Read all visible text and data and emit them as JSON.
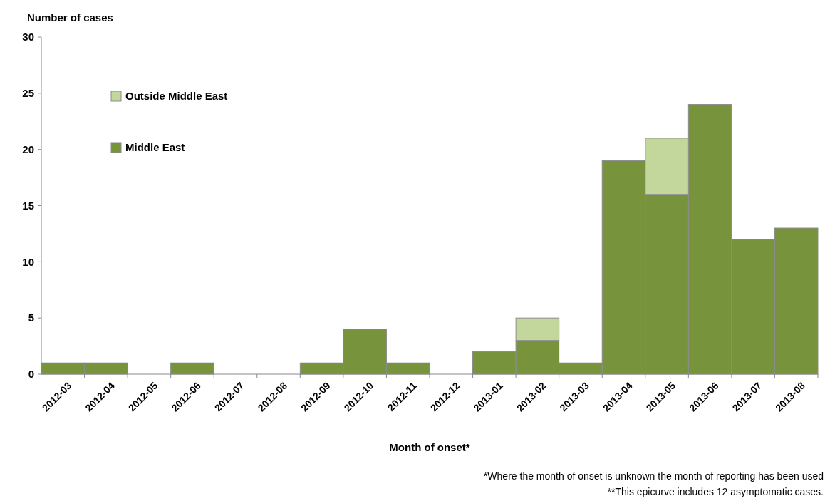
{
  "chart_data": {
    "type": "bar",
    "stacked": true,
    "ylabel": "Number of cases",
    "xlabel": "Month of onset*",
    "categories": [
      "2012-03",
      "2012-04",
      "2012-05",
      "2012-06",
      "2012-07",
      "2012-08",
      "2012-09",
      "2012-10",
      "2012-11",
      "2012-12",
      "2013-01",
      "2013-02",
      "2013-03",
      "2013-04",
      "2013-05",
      "2013-06",
      "2013-07",
      "2013-08"
    ],
    "series": [
      {
        "name": "Middle East",
        "color": "#77933c",
        "values": [
          1,
          1,
          0,
          1,
          0,
          0,
          1,
          4,
          1,
          0,
          2,
          3,
          1,
          19,
          16,
          24,
          12,
          13
        ]
      },
      {
        "name": "Outside Middle East",
        "color": "#c3d69b",
        "values": [
          0,
          0,
          0,
          0,
          0,
          0,
          0,
          0,
          0,
          0,
          0,
          2,
          0,
          0,
          5,
          0,
          0,
          0
        ]
      }
    ],
    "ylim": [
      0,
      30
    ],
    "yticks": [
      0,
      5,
      10,
      15,
      20,
      25,
      30
    ],
    "grid": false,
    "legend": "top left",
    "annotations": [
      "*Where the month of onset is unknown the month of reporting has been used",
      "**This epicurve includes 12 asymptomatic cases."
    ]
  }
}
